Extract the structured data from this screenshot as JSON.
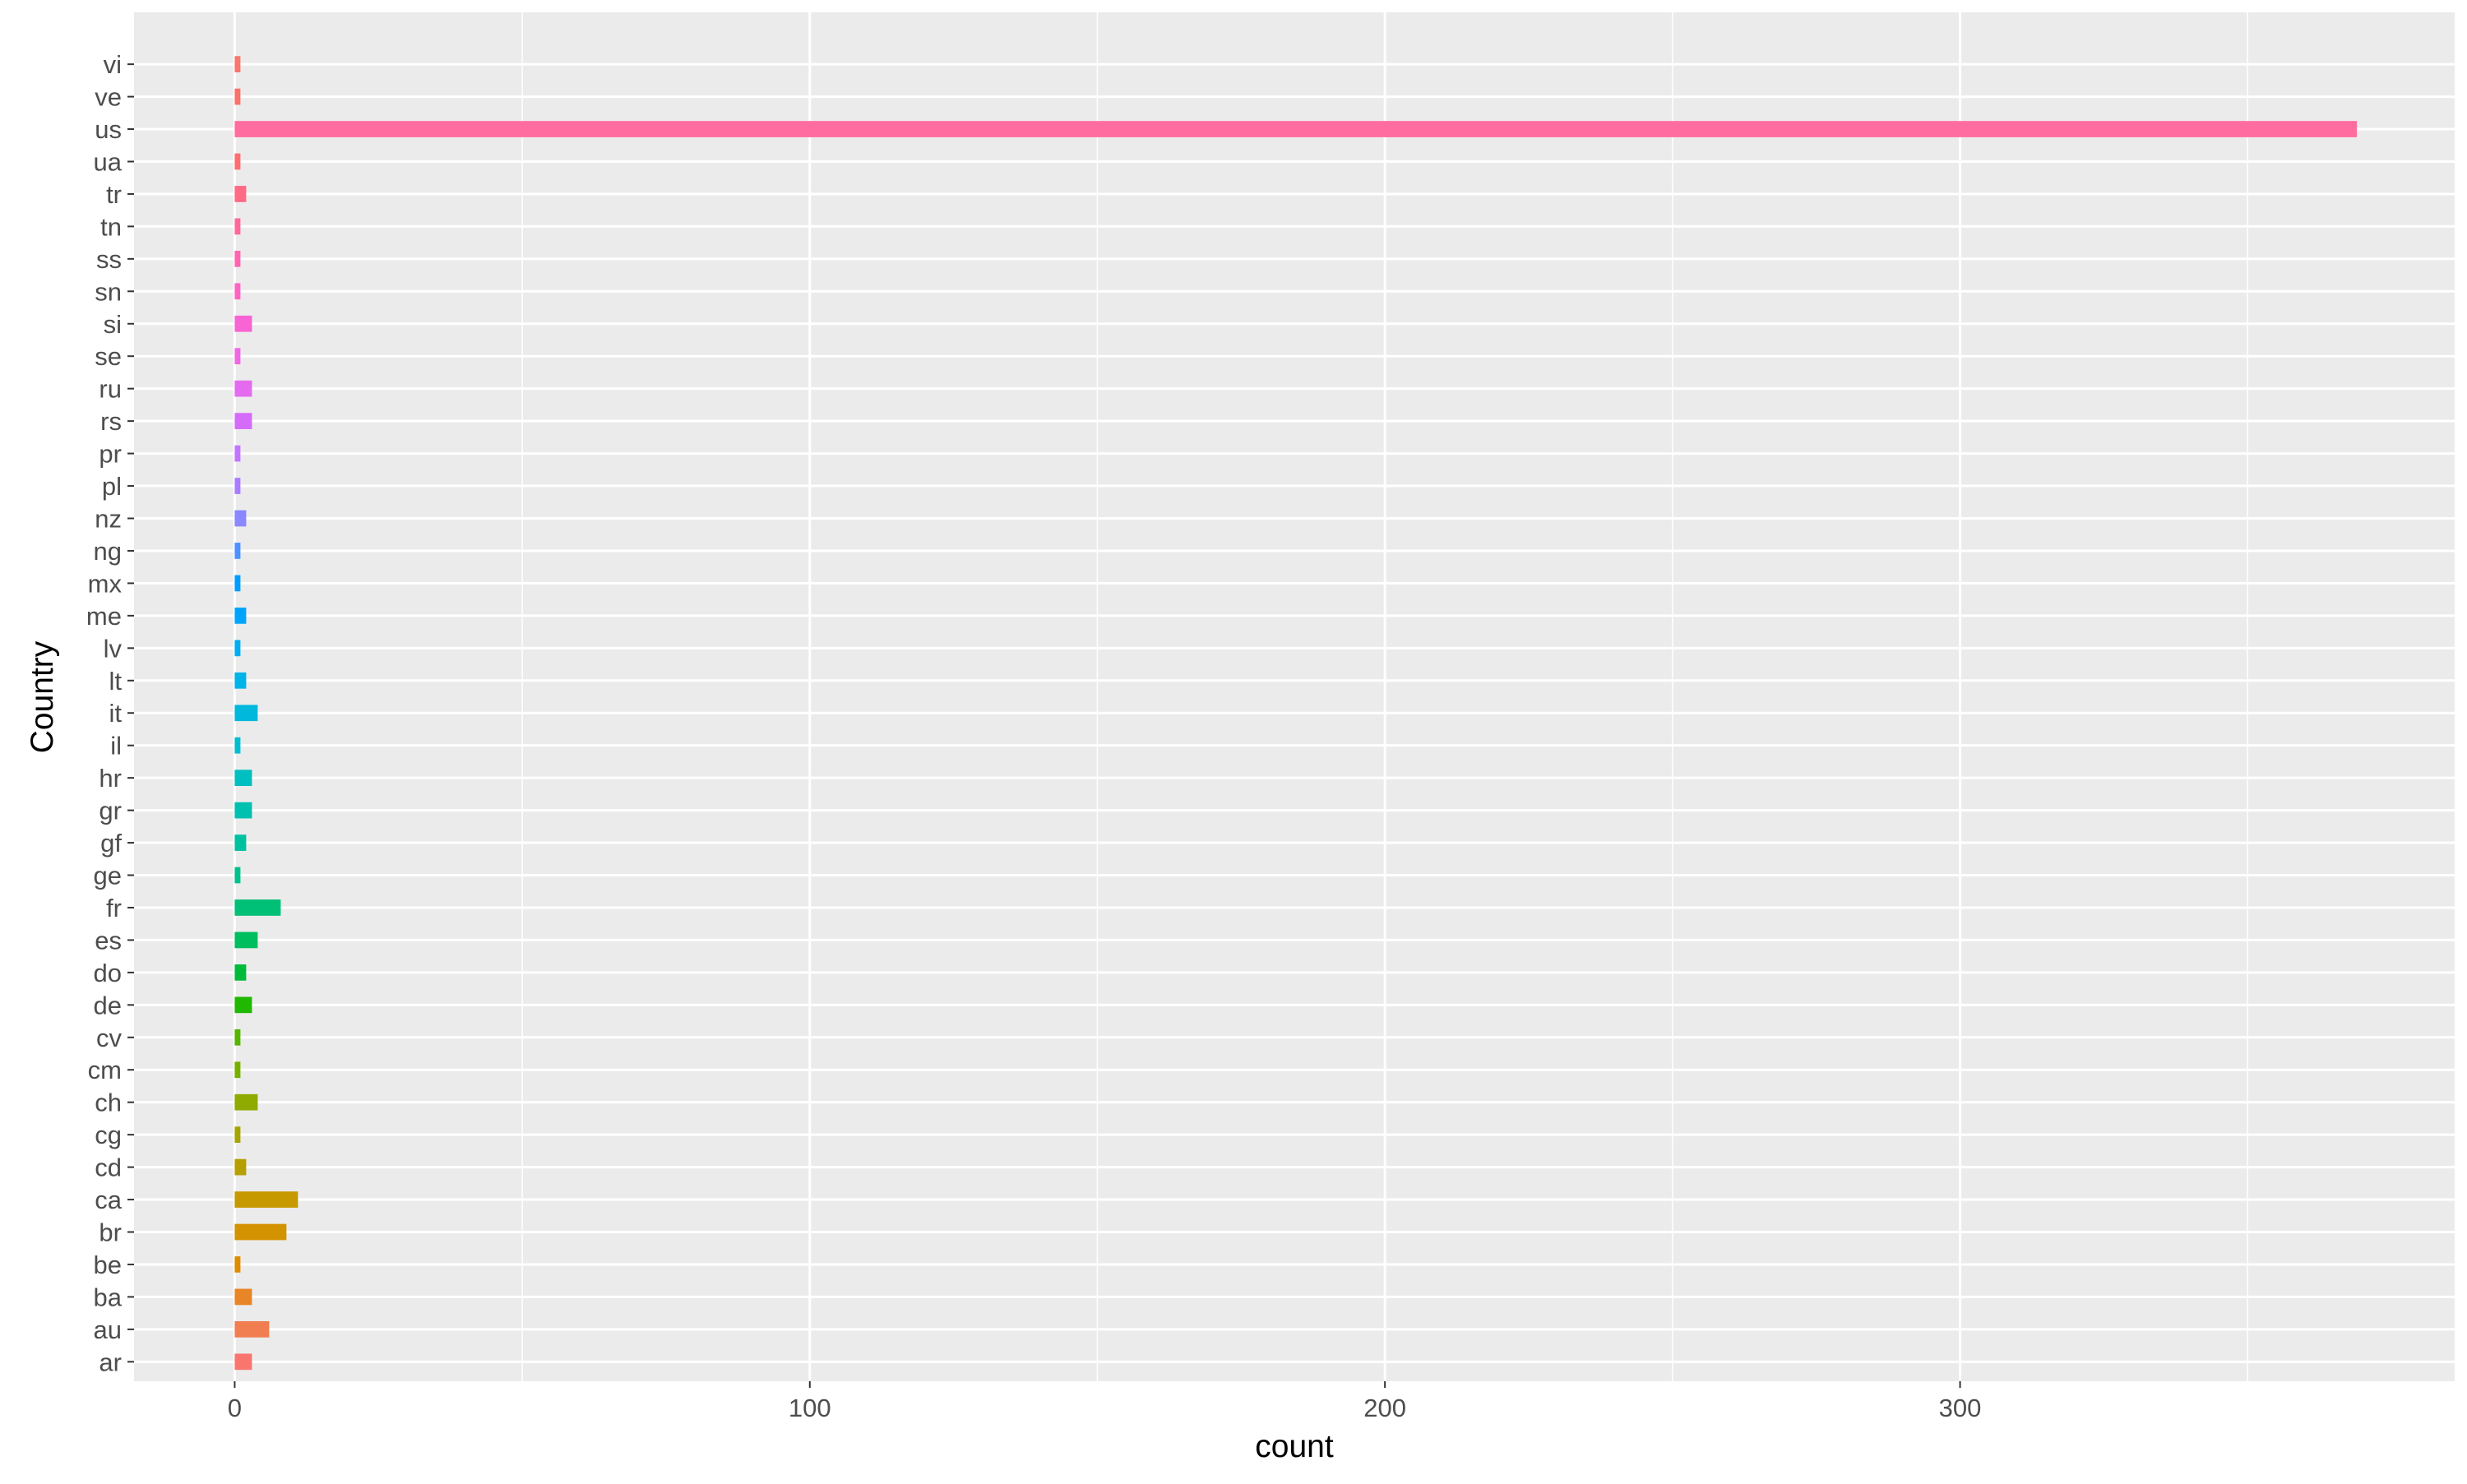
{
  "chart_data": {
    "type": "bar",
    "orientation": "horizontal",
    "xlabel": "count",
    "ylabel": "Country",
    "xlim": [
      -17.5,
      386
    ],
    "x_ticks": [
      0,
      100,
      200,
      300
    ],
    "x_tick_labels": [
      "0",
      "100",
      "200",
      "300"
    ],
    "grid": true,
    "legend": "none",
    "categories": [
      "ar",
      "au",
      "ba",
      "be",
      "br",
      "ca",
      "cd",
      "cg",
      "ch",
      "cm",
      "cv",
      "de",
      "do",
      "es",
      "fr",
      "ge",
      "gf",
      "gr",
      "hr",
      "il",
      "it",
      "lt",
      "lv",
      "me",
      "mx",
      "ng",
      "nz",
      "pl",
      "pr",
      "rs",
      "ru",
      "se",
      "si",
      "sn",
      "ss",
      "tn",
      "tr",
      "ua",
      "us",
      "ve",
      "vi"
    ],
    "values": [
      3,
      6,
      3,
      1,
      9,
      11,
      2,
      1,
      4,
      1,
      1,
      3,
      2,
      4,
      8,
      1,
      2,
      3,
      3,
      1,
      4,
      2,
      1,
      2,
      1,
      1,
      2,
      1,
      1,
      3,
      3,
      1,
      3,
      1,
      1,
      1,
      2,
      1,
      369,
      1,
      1
    ],
    "colors": [
      "#F8766D",
      "#F17E50",
      "#E88526",
      "#DE8C00",
      "#D39200",
      "#C69900",
      "#B69F00",
      "#A4A500",
      "#8FAA00",
      "#77AF00",
      "#57B400",
      "#20B800",
      "#00BB3A",
      "#00BE5D",
      "#00BF76",
      "#00C18C",
      "#00C19F",
      "#00C0B0",
      "#00BFC0",
      "#00BCCF",
      "#00B8DC",
      "#00B3E8",
      "#00ADF2",
      "#00A5FB",
      "#009CFF",
      "#4D92FF",
      "#8A87FF",
      "#AB7CFF",
      "#C274FF",
      "#D56CF9",
      "#E46BF0",
      "#EF67E3",
      "#F864D4",
      "#FE63C3",
      "#FF64B0",
      "#FF679B",
      "#FF6A85",
      "#FD6E70",
      "#FF6C9F",
      "#F9726C",
      "#F8766D"
    ]
  }
}
